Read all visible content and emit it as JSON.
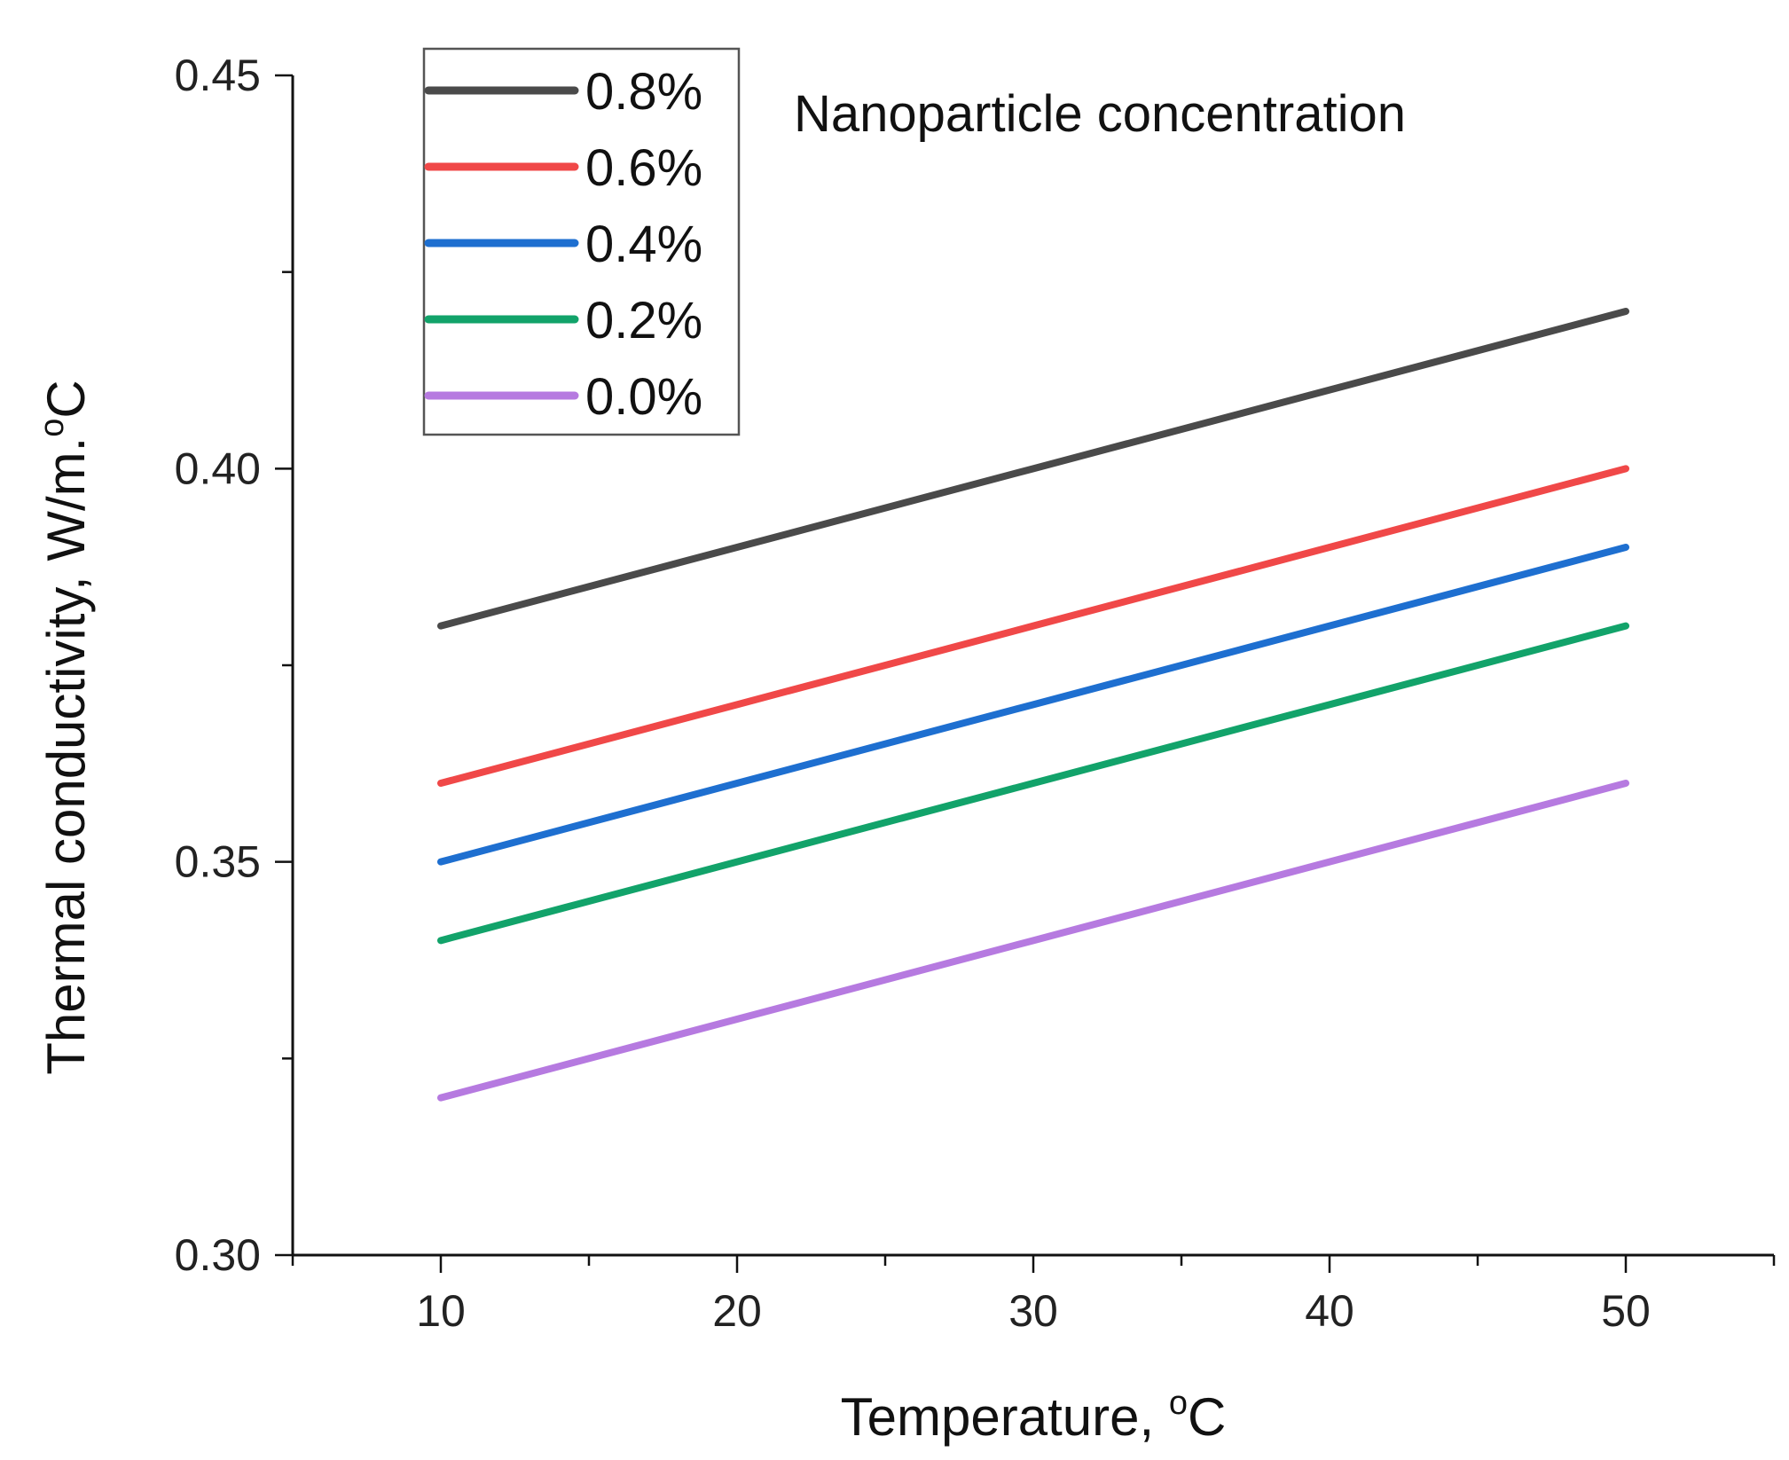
{
  "chart_data": {
    "type": "line",
    "title": "",
    "xlabel": "Temperature, ",
    "xlabel_sup": "o",
    "xlabel_suffix": "C",
    "ylabel": "Thermal conductivity, W/m.",
    "ylabel_sup": "o",
    "ylabel_suffix": "C",
    "xlim": [
      5,
      55
    ],
    "ylim": [
      0.3,
      0.45
    ],
    "x_ticks": [
      10,
      20,
      30,
      40,
      50
    ],
    "x_minor_ticks": [
      5,
      15,
      25,
      35,
      45,
      55
    ],
    "y_ticks": [
      "0.30",
      "0.35",
      "0.40",
      "0.45"
    ],
    "y_tick_values": [
      0.3,
      0.35,
      0.4,
      0.45
    ],
    "y_minor_ticks": [
      0.325,
      0.375,
      0.425
    ],
    "grid": false,
    "legend_position": "top-left",
    "annotation": "Nanoparticle concentration",
    "x": [
      10,
      20,
      30,
      40,
      50
    ],
    "series": [
      {
        "name": "0.8%",
        "color": "#4a4a4a",
        "values": [
          0.38,
          0.39,
          0.4,
          0.41,
          0.42
        ]
      },
      {
        "name": "0.6%",
        "color": "#f04848",
        "values": [
          0.36,
          0.37,
          0.38,
          0.39,
          0.4
        ]
      },
      {
        "name": "0.4%",
        "color": "#1e6fd0",
        "values": [
          0.35,
          0.36,
          0.37,
          0.38,
          0.39
        ]
      },
      {
        "name": "0.2%",
        "color": "#12a36a",
        "values": [
          0.34,
          0.35,
          0.36,
          0.37,
          0.38
        ]
      },
      {
        "name": "0.0%",
        "color": "#b67ae0",
        "values": [
          0.32,
          0.33,
          0.34,
          0.35,
          0.36
        ]
      }
    ]
  }
}
